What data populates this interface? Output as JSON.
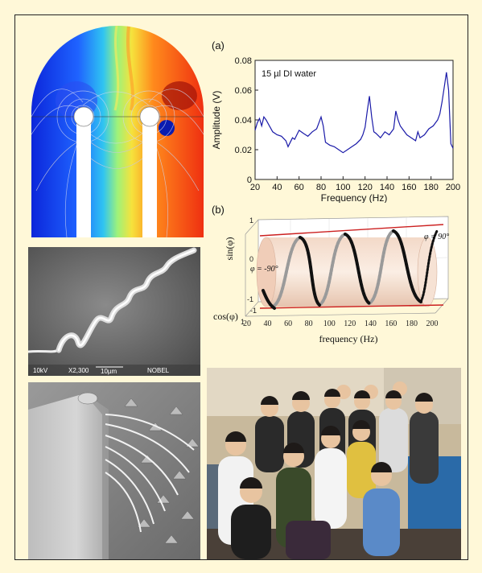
{
  "chart_data": [
    {
      "type": "line",
      "panel_label": "(a)",
      "annotation": "15 µl DI water",
      "xlabel": "Frequency (Hz)",
      "ylabel": "Amplitude (V)",
      "xlim": [
        20,
        200
      ],
      "ylim": [
        0,
        0.08
      ],
      "x_ticks": [
        "20",
        "40",
        "60",
        "80",
        "100",
        "120",
        "140",
        "160",
        "180",
        "200"
      ],
      "y_ticks": [
        "0",
        "0.02",
        "0.04",
        "0.06",
        "0.08"
      ],
      "series": [
        {
          "color": "#1a1aa8",
          "x": [
            20,
            22,
            24,
            26,
            28,
            30,
            33,
            36,
            40,
            44,
            48,
            50,
            52,
            54,
            56,
            58,
            60,
            64,
            68,
            72,
            76,
            78,
            80,
            82,
            84,
            86,
            88,
            92,
            96,
            100,
            104,
            108,
            112,
            116,
            118,
            120,
            122,
            124,
            126,
            128,
            130,
            134,
            138,
            142,
            146,
            148,
            150,
            152,
            154,
            158,
            162,
            166,
            168,
            170,
            174,
            178,
            182,
            186,
            188,
            190,
            192,
            194,
            196,
            198,
            200
          ],
          "y": [
            0.033,
            0.038,
            0.041,
            0.036,
            0.042,
            0.04,
            0.036,
            0.032,
            0.03,
            0.029,
            0.026,
            0.022,
            0.025,
            0.028,
            0.027,
            0.03,
            0.033,
            0.031,
            0.029,
            0.032,
            0.034,
            0.038,
            0.042,
            0.036,
            0.025,
            0.024,
            0.023,
            0.022,
            0.02,
            0.018,
            0.02,
            0.022,
            0.024,
            0.027,
            0.03,
            0.035,
            0.046,
            0.056,
            0.042,
            0.032,
            0.031,
            0.028,
            0.032,
            0.03,
            0.034,
            0.046,
            0.04,
            0.036,
            0.034,
            0.03,
            0.028,
            0.026,
            0.032,
            0.028,
            0.03,
            0.034,
            0.036,
            0.04,
            0.044,
            0.052,
            0.062,
            0.072,
            0.06,
            0.024,
            0.021
          ]
        }
      ]
    },
    {
      "type": "scatter",
      "panel_label": "(b)",
      "xlabel": "frequency (Hz)",
      "ylabel_sin": "sin(φ)",
      "ylabel_cos": "cos(φ)",
      "annotation_plus": "φ = 90°",
      "annotation_minus": "φ = -90°",
      "x_ticks": [
        "20",
        "40",
        "60",
        "80",
        "100",
        "120",
        "140",
        "160",
        "180",
        "200"
      ],
      "z_ticks": [
        "1",
        "0",
        "-1"
      ],
      "cos_ticks": [
        "-1",
        "1"
      ],
      "xlim": [
        20,
        200
      ]
    }
  ],
  "sem_scale": {
    "kv": "10kV",
    "mag": "X2,300",
    "bar": "10µm",
    "name": "NOBEL"
  }
}
